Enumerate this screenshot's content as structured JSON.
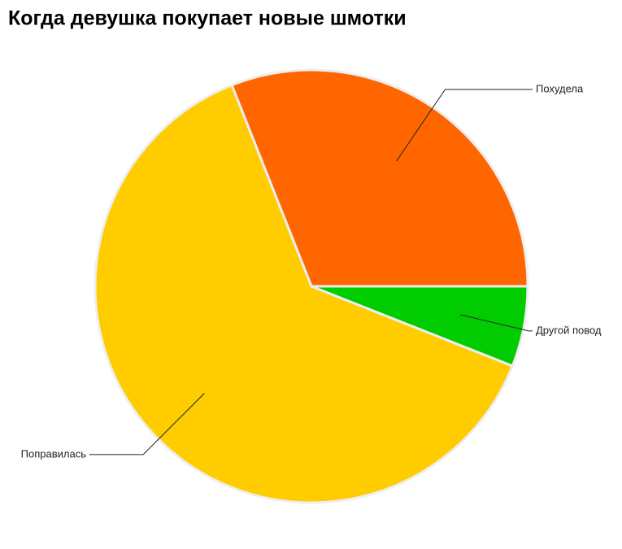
{
  "chart_data": {
    "type": "pie",
    "title": "Когда девушка покупает новые шмотки",
    "categories": [
      "Похудела",
      "Поправилась",
      "Другой повод"
    ],
    "values": [
      31,
      63,
      6
    ],
    "colors": [
      "#ff6600",
      "#ffcc00",
      "#00cc00"
    ]
  }
}
